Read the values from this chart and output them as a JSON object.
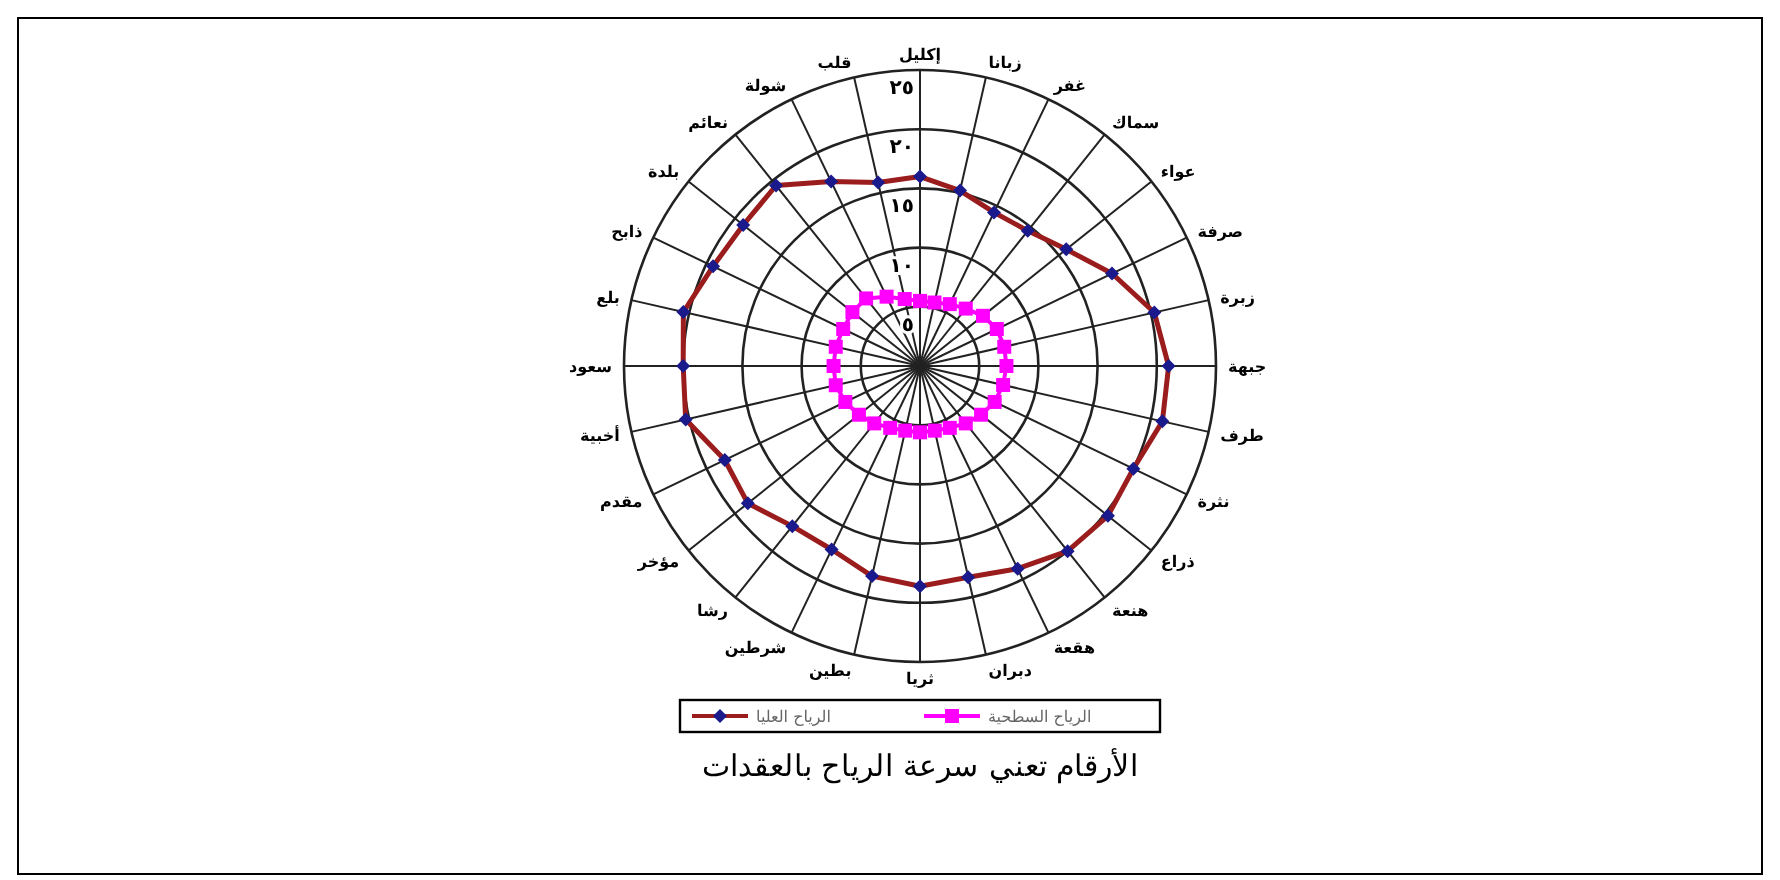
{
  "chart_data": {
    "type": "radar",
    "categories": [
      "إكليل",
      "زبانا",
      "غفر",
      "سماك",
      "عواء",
      "صرفة",
      "زبرة",
      "جبهة",
      "طرف",
      "نثرة",
      "ذراع",
      "هنعة",
      "هقعة",
      "دبران",
      "ثريا",
      "بطين",
      "شرطين",
      "رشا",
      "مؤخر",
      "مقدم",
      "أخبية",
      "سعود",
      "بلع",
      "ذابح",
      "بلدة",
      "نعائم",
      "شولة",
      "قلب"
    ],
    "series": [
      {
        "name": "الرياح العليا",
        "color": "#9b1c1c",
        "marker": "diamond",
        "values": [
          16,
          15.2,
          14.4,
          14.6,
          15.8,
          18,
          20.3,
          21,
          21,
          20,
          20.3,
          20,
          19,
          18.3,
          18.6,
          18.2,
          17.2,
          17.3,
          18.6,
          18.3,
          20.3,
          20,
          20.5,
          19.4,
          19.1,
          19.5,
          17.3,
          15.9
        ]
      },
      {
        "name": "الرياح السطحية",
        "color": "#ff00ff",
        "marker": "square",
        "values": [
          5.5,
          5.5,
          5.8,
          6.2,
          6.8,
          7.2,
          7.3,
          7.3,
          7.2,
          7,
          6.6,
          6.2,
          5.8,
          5.6,
          5.6,
          5.6,
          5.8,
          6.2,
          6.6,
          7,
          7.3,
          7.3,
          7.3,
          7.2,
          7.3,
          7.3,
          6.5,
          5.8
        ]
      }
    ],
    "ylim": [
      0,
      25
    ],
    "yticks": [
      {
        "value": 5,
        "label": "٥"
      },
      {
        "value": 10,
        "label": "١٠"
      },
      {
        "value": 15,
        "label": "١٥"
      },
      {
        "value": 20,
        "label": "٢٠"
      },
      {
        "value": 25,
        "label": "٢٥"
      }
    ],
    "grid": true,
    "legend": "bottom",
    "annotations": [
      "الأرقام تعني سرعة الرياح بالعقدات"
    ]
  }
}
